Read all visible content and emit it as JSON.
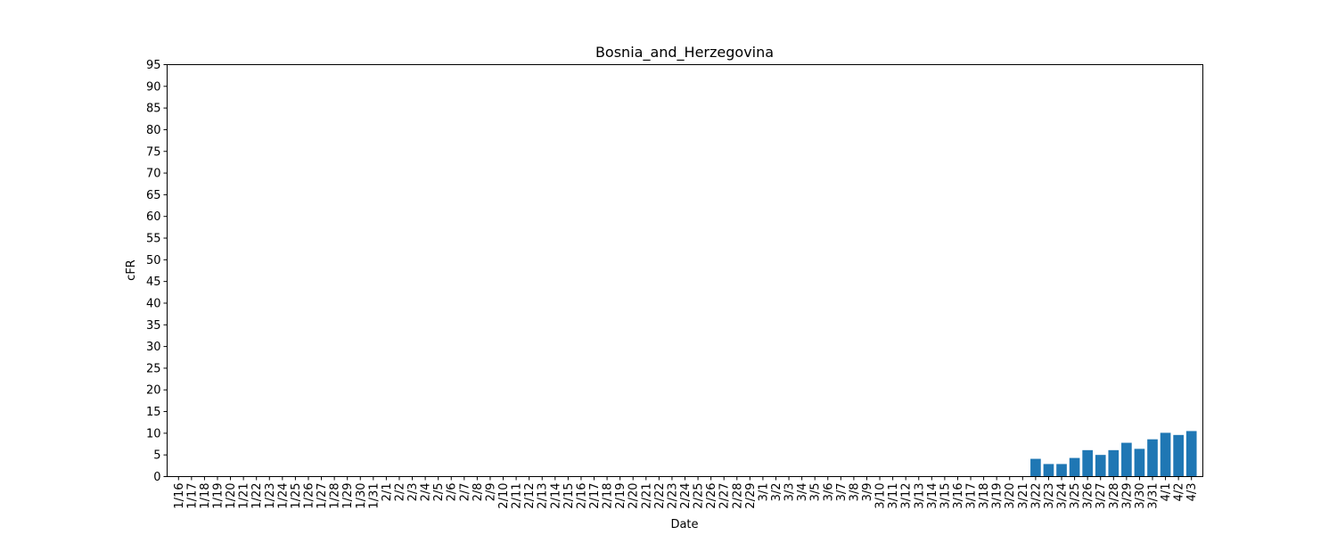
{
  "chart_data": {
    "type": "bar",
    "title": "Bosnia_and_Herzegovina",
    "xlabel": "Date",
    "ylabel": "cFR",
    "ylim": [
      0,
      95
    ],
    "yticks": [
      0,
      5,
      10,
      15,
      20,
      25,
      30,
      35,
      40,
      45,
      50,
      55,
      60,
      65,
      70,
      75,
      80,
      85,
      90,
      95
    ],
    "grid": false,
    "bar_color": "#1f77b4",
    "categories": [
      "1/16",
      "1/17",
      "1/18",
      "1/19",
      "1/20",
      "1/21",
      "1/22",
      "1/23",
      "1/24",
      "1/25",
      "1/26",
      "1/27",
      "1/28",
      "1/29",
      "1/30",
      "1/31",
      "2/1",
      "2/2",
      "2/3",
      "2/4",
      "2/5",
      "2/6",
      "2/7",
      "2/8",
      "2/9",
      "2/10",
      "2/11",
      "2/12",
      "2/13",
      "2/14",
      "2/15",
      "2/16",
      "2/17",
      "2/18",
      "2/19",
      "2/20",
      "2/21",
      "2/22",
      "2/23",
      "2/24",
      "2/25",
      "2/26",
      "2/27",
      "2/28",
      "2/29",
      "3/1",
      "3/2",
      "3/3",
      "3/4",
      "3/5",
      "3/6",
      "3/7",
      "3/8",
      "3/9",
      "3/10",
      "3/11",
      "3/12",
      "3/13",
      "3/14",
      "3/15",
      "3/16",
      "3/17",
      "3/18",
      "3/19",
      "3/20",
      "3/21",
      "3/22",
      "3/23",
      "3/24",
      "3/25",
      "3/26",
      "3/27",
      "3/28",
      "3/29",
      "3/30",
      "3/31",
      "4/1",
      "4/2",
      "4/3"
    ],
    "values": [
      0,
      0,
      0,
      0,
      0,
      0,
      0,
      0,
      0,
      0,
      0,
      0,
      0,
      0,
      0,
      0,
      0,
      0,
      0,
      0,
      0,
      0,
      0,
      0,
      0,
      0,
      0,
      0,
      0,
      0,
      0,
      0,
      0,
      0,
      0,
      0,
      0,
      0,
      0,
      0,
      0,
      0,
      0,
      0,
      0,
      0,
      0,
      0,
      0,
      0,
      0,
      0,
      0,
      0,
      0,
      0,
      0,
      0,
      0,
      0,
      0,
      0,
      0,
      0,
      0,
      0,
      4.1,
      2.9,
      2.9,
      4.3,
      6.1,
      5.0,
      6.1,
      7.8,
      6.4,
      8.6,
      10.1,
      9.6,
      10.5
    ]
  }
}
